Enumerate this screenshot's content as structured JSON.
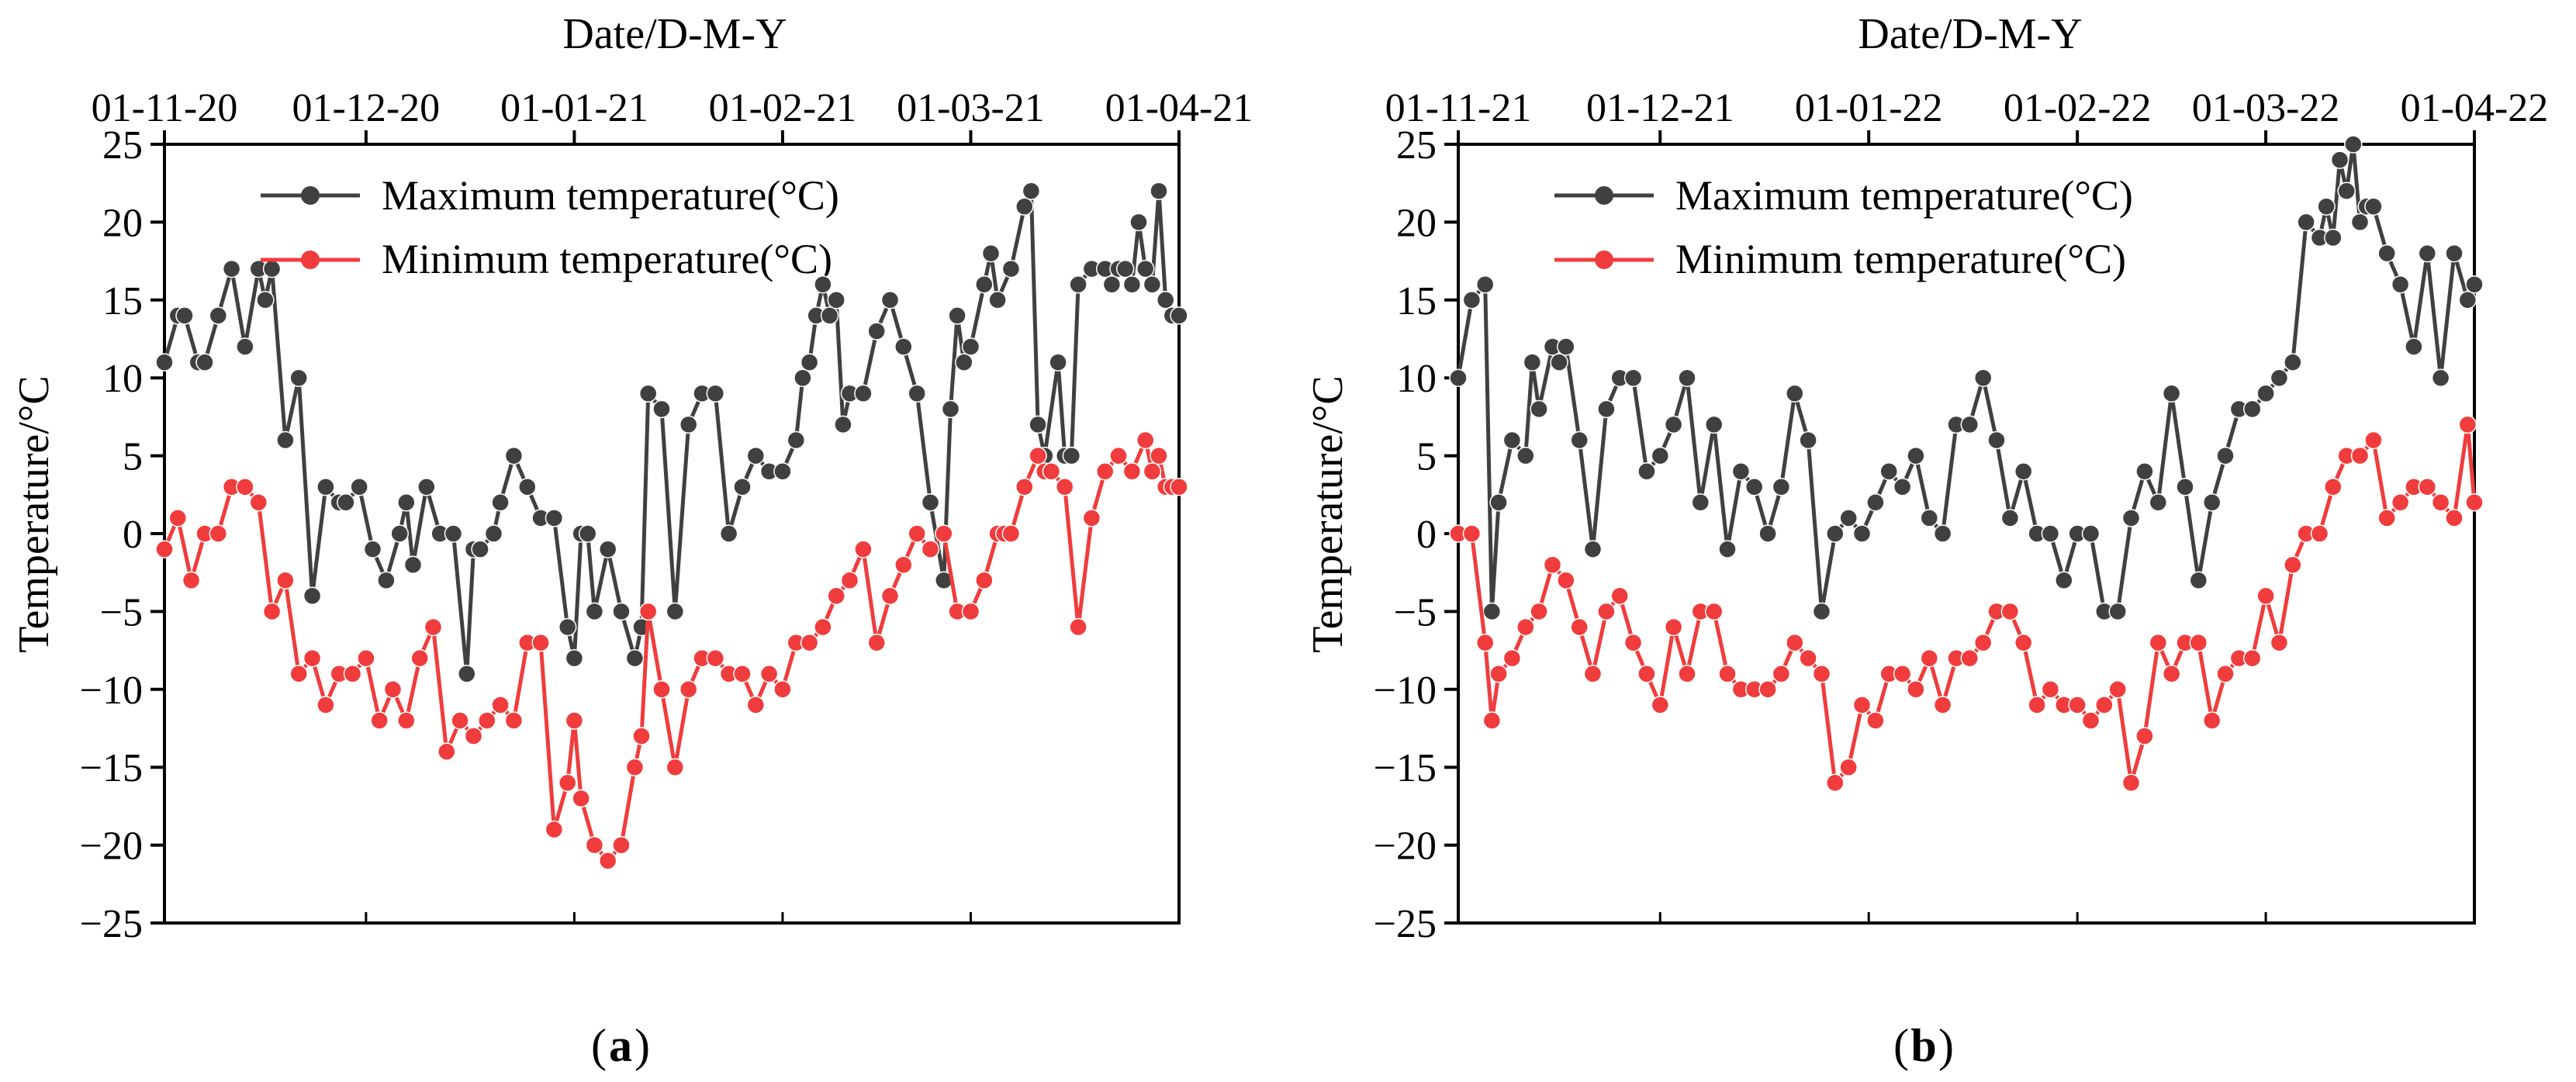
{
  "colors": {
    "max_series": "#404040",
    "min_series": "#f03c3c",
    "axis": "#000000"
  },
  "chart_data": [
    {
      "type": "line",
      "panel_label": "a",
      "top_xlabel": "Date/D-M-Y",
      "ylabel": "Temperature/°C",
      "x_tick_labels": [
        "01-11-20",
        "01-12-20",
        "01-01-21",
        "01-02-21",
        "01-03-21",
        "01-04-21"
      ],
      "x_tick_days": [
        0,
        30,
        61,
        92,
        120,
        151
      ],
      "xlim": [
        0,
        151
      ],
      "ylim": [
        -25,
        25
      ],
      "y_ticks": [
        25,
        20,
        15,
        10,
        5,
        0,
        -5,
        -10,
        -15,
        -20,
        -25
      ],
      "legend": [
        "Maximum temperature(°C)",
        "Minimum temperature(°C)"
      ],
      "series": [
        {
          "name": "Maximum temperature(°C)",
          "x": [
            0,
            2,
            3,
            5,
            6,
            8,
            10,
            12,
            14,
            15,
            16,
            18,
            20,
            22,
            24,
            26,
            27,
            29,
            31,
            33,
            35,
            36,
            37,
            39,
            41,
            43,
            45,
            46,
            47,
            49,
            50,
            52,
            54,
            56,
            58,
            60,
            61,
            62,
            63,
            64,
            66,
            68,
            70,
            71,
            72,
            74,
            76,
            78,
            80,
            82,
            84,
            86,
            88,
            90,
            92,
            94,
            95,
            96,
            97,
            98,
            99,
            100,
            101,
            102,
            104,
            106,
            108,
            110,
            112,
            114,
            116,
            117,
            118,
            119,
            120,
            122,
            123,
            124,
            126,
            128,
            129,
            130,
            131,
            133,
            134,
            135,
            136,
            138,
            140,
            141,
            142,
            143,
            144,
            145,
            146,
            147,
            148,
            149,
            150,
            151
          ],
          "values": [
            11,
            14,
            14,
            11,
            11,
            14,
            17,
            12,
            17,
            15,
            17,
            6,
            10,
            -4,
            3,
            2,
            2,
            3,
            -1,
            -3,
            0,
            2,
            -2,
            3,
            0,
            0,
            -9,
            -1,
            -1,
            0,
            2,
            5,
            3,
            1,
            1,
            -6,
            -8,
            0,
            0,
            -5,
            -1,
            -5,
            -8,
            -6,
            9,
            8,
            -5,
            7,
            9,
            9,
            0,
            3,
            5,
            4,
            4,
            6,
            10,
            11,
            14,
            16,
            14,
            15,
            7,
            9,
            9,
            13,
            15,
            12,
            9,
            2,
            -3,
            8,
            14,
            11,
            12,
            16,
            18,
            15,
            17,
            21,
            22,
            7,
            5,
            11,
            5,
            5,
            16,
            17,
            17,
            16,
            17,
            17,
            16,
            20,
            17,
            16,
            22,
            15,
            14,
            14
          ]
        },
        {
          "name": "Minimum temperature(°C)",
          "x": [
            0,
            2,
            4,
            6,
            8,
            10,
            12,
            14,
            16,
            18,
            20,
            22,
            24,
            26,
            28,
            30,
            32,
            34,
            36,
            38,
            40,
            42,
            44,
            46,
            48,
            50,
            52,
            54,
            56,
            58,
            60,
            61,
            62,
            64,
            66,
            68,
            70,
            71,
            72,
            74,
            76,
            78,
            80,
            82,
            84,
            86,
            88,
            90,
            92,
            94,
            96,
            98,
            100,
            102,
            104,
            106,
            108,
            110,
            112,
            114,
            116,
            118,
            120,
            122,
            124,
            125,
            126,
            128,
            130,
            131,
            132,
            134,
            136,
            138,
            140,
            142,
            144,
            146,
            147,
            148,
            149,
            150,
            151
          ],
          "values": [
            -1,
            1,
            -3,
            0,
            0,
            3,
            3,
            2,
            -5,
            -3,
            -9,
            -8,
            -11,
            -9,
            -9,
            -8,
            -12,
            -10,
            -12,
            -8,
            -6,
            -14,
            -12,
            -13,
            -12,
            -11,
            -12,
            -7,
            -7,
            -19,
            -16,
            -12,
            -17,
            -20,
            -21,
            -20,
            -15,
            -13,
            -5,
            -10,
            -15,
            -10,
            -8,
            -8,
            -9,
            -9,
            -11,
            -9,
            -10,
            -7,
            -7,
            -6,
            -4,
            -3,
            -1,
            -7,
            -4,
            -2,
            0,
            -1,
            0,
            -5,
            -5,
            -3,
            0,
            0,
            0,
            3,
            5,
            4,
            4,
            3,
            -6,
            1,
            4,
            5,
            4,
            6,
            4,
            5,
            3,
            3,
            3
          ]
        }
      ]
    },
    {
      "type": "line",
      "panel_label": "b",
      "top_xlabel": "Date/D-M-Y",
      "ylabel": "Temperature/°C",
      "x_tick_labels": [
        "01-11-21",
        "01-12-21",
        "01-01-22",
        "01-02-22",
        "01-03-22",
        "01-04-22"
      ],
      "x_tick_days": [
        0,
        30,
        61,
        92,
        120,
        151
      ],
      "xlim": [
        0,
        151
      ],
      "ylim": [
        -25,
        25
      ],
      "y_ticks": [
        25,
        20,
        15,
        10,
        5,
        0,
        -5,
        -10,
        -15,
        -20,
        -25
      ],
      "legend": [
        "Maximum temperature(°C)",
        "Minimum temperature(°C)"
      ],
      "series": [
        {
          "name": "Maximum temperature(°C)",
          "x": [
            0,
            2,
            4,
            5,
            6,
            8,
            10,
            11,
            12,
            14,
            15,
            16,
            18,
            20,
            22,
            24,
            26,
            28,
            30,
            32,
            34,
            36,
            38,
            40,
            42,
            44,
            46,
            48,
            50,
            52,
            54,
            56,
            58,
            60,
            62,
            64,
            66,
            68,
            70,
            72,
            74,
            76,
            78,
            80,
            82,
            84,
            86,
            88,
            90,
            92,
            94,
            96,
            98,
            100,
            102,
            104,
            106,
            108,
            110,
            112,
            114,
            116,
            118,
            120,
            122,
            124,
            126,
            128,
            129,
            130,
            131,
            132,
            133,
            134,
            135,
            136,
            138,
            140,
            142,
            144,
            146,
            148,
            150,
            151
          ],
          "values": [
            10,
            15,
            16,
            -5,
            2,
            6,
            5,
            11,
            8,
            12,
            11,
            12,
            6,
            -1,
            8,
            10,
            10,
            4,
            5,
            7,
            10,
            2,
            7,
            -1,
            4,
            3,
            0,
            3,
            9,
            6,
            -5,
            0,
            1,
            0,
            2,
            4,
            3,
            5,
            1,
            0,
            7,
            7,
            10,
            6,
            1,
            4,
            0,
            0,
            -3,
            0,
            0,
            -5,
            -5,
            1,
            4,
            2,
            9,
            3,
            -3,
            2,
            5,
            8,
            8,
            9,
            10,
            11,
            20,
            19,
            21,
            19,
            24,
            22,
            25,
            20,
            21,
            21,
            18,
            16,
            12,
            18,
            10,
            18,
            15,
            16
          ]
        },
        {
          "name": "Minimum temperature(°C)",
          "x": [
            0,
            2,
            4,
            5,
            6,
            8,
            10,
            12,
            14,
            16,
            18,
            20,
            22,
            24,
            26,
            28,
            30,
            32,
            34,
            36,
            38,
            40,
            42,
            44,
            46,
            48,
            50,
            52,
            54,
            56,
            58,
            60,
            62,
            64,
            66,
            68,
            70,
            72,
            74,
            76,
            78,
            80,
            82,
            84,
            86,
            88,
            90,
            92,
            94,
            96,
            98,
            100,
            102,
            104,
            106,
            108,
            110,
            112,
            114,
            116,
            118,
            120,
            122,
            124,
            126,
            128,
            130,
            132,
            134,
            136,
            138,
            140,
            142,
            144,
            146,
            148,
            150,
            151
          ],
          "values": [
            0,
            0,
            -7,
            -12,
            -9,
            -8,
            -6,
            -5,
            -2,
            -3,
            -6,
            -9,
            -5,
            -4,
            -7,
            -9,
            -11,
            -6,
            -9,
            -5,
            -5,
            -9,
            -10,
            -10,
            -10,
            -9,
            -7,
            -8,
            -9,
            -16,
            -15,
            -11,
            -12,
            -9,
            -9,
            -10,
            -8,
            -11,
            -8,
            -8,
            -7,
            -5,
            -5,
            -7,
            -11,
            -10,
            -11,
            -11,
            -12,
            -11,
            -10,
            -16,
            -13,
            -7,
            -9,
            -7,
            -7,
            -12,
            -9,
            -8,
            -8,
            -4,
            -7,
            -2,
            0,
            0,
            3,
            5,
            5,
            6,
            1,
            2,
            3,
            3,
            2,
            1,
            7,
            2
          ]
        }
      ]
    }
  ]
}
